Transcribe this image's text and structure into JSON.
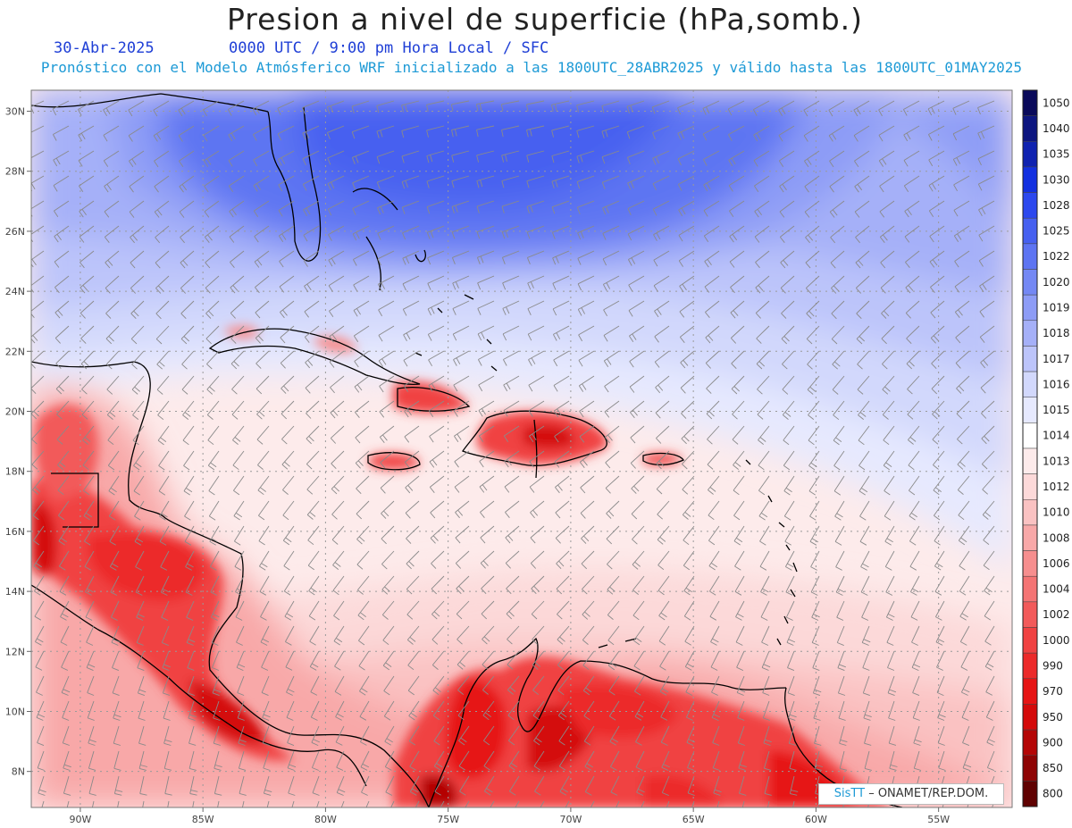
{
  "header": {
    "title": "Presion a nivel de superficie (hPa,somb.)",
    "date": "30-Abr-2025",
    "time_label": "0000 UTC / 9:00 pm Hora Local / SFC",
    "model_line": "Pronóstico con el Modelo Atmósferico WRF inicializado a las 1800UTC_28ABR2025 y válido hasta las  1800UTC_01MAY2025"
  },
  "map": {
    "lon_range": [
      -92,
      -52
    ],
    "lat_range": [
      6.8,
      30.7
    ],
    "lon_ticks": [
      {
        "value": -90,
        "label": "90W"
      },
      {
        "value": -85,
        "label": "85W"
      },
      {
        "value": -80,
        "label": "80W"
      },
      {
        "value": -75,
        "label": "75W"
      },
      {
        "value": -70,
        "label": "70W"
      },
      {
        "value": -65,
        "label": "65W"
      },
      {
        "value": -60,
        "label": "60W"
      },
      {
        "value": -55,
        "label": "55W"
      }
    ],
    "lat_ticks": [
      {
        "value": 30,
        "label": "30N"
      },
      {
        "value": 28,
        "label": "28N"
      },
      {
        "value": 26,
        "label": "26N"
      },
      {
        "value": 24,
        "label": "24N"
      },
      {
        "value": 22,
        "label": "22N"
      },
      {
        "value": 20,
        "label": "20N"
      },
      {
        "value": 18,
        "label": "18N"
      },
      {
        "value": 16,
        "label": "16N"
      },
      {
        "value": 14,
        "label": "14N"
      },
      {
        "value": 12,
        "label": "12N"
      },
      {
        "value": 10,
        "label": "10N"
      },
      {
        "value": 8,
        "label": "8N"
      }
    ],
    "grid": "dotted",
    "wind_barbs": true
  },
  "colorbar": {
    "levels": [
      {
        "label": "1050",
        "color": "#0a0a5a"
      },
      {
        "label": "1040",
        "color": "#0d1680"
      },
      {
        "label": "1035",
        "color": "#0f22b0"
      },
      {
        "label": "1030",
        "color": "#1230e0"
      },
      {
        "label": "1028",
        "color": "#2c48ee"
      },
      {
        "label": "1025",
        "color": "#4660f0"
      },
      {
        "label": "1022",
        "color": "#5d74f2"
      },
      {
        "label": "1020",
        "color": "#7488f4"
      },
      {
        "label": "1019",
        "color": "#8d9cf6"
      },
      {
        "label": "1018",
        "color": "#a5b0f8"
      },
      {
        "label": "1017",
        "color": "#bcc4fa"
      },
      {
        "label": "1016",
        "color": "#d2d8fc"
      },
      {
        "label": "1015",
        "color": "#e6e9fe"
      },
      {
        "label": "1014",
        "color": "#ffffff"
      },
      {
        "label": "1013",
        "color": "#fdebeb"
      },
      {
        "label": "1012",
        "color": "#fcd9d9"
      },
      {
        "label": "1010",
        "color": "#fac2c2"
      },
      {
        "label": "1008",
        "color": "#f8a8a8"
      },
      {
        "label": "1006",
        "color": "#f68e8e"
      },
      {
        "label": "1004",
        "color": "#f47474"
      },
      {
        "label": "1002",
        "color": "#f25a5a"
      },
      {
        "label": "1000",
        "color": "#f04242"
      },
      {
        "label": "990",
        "color": "#ec2a2a"
      },
      {
        "label": "970",
        "color": "#e61414"
      },
      {
        "label": "950",
        "color": "#d40a0a"
      },
      {
        "label": "900",
        "color": "#b40606"
      },
      {
        "label": "850",
        "color": "#8e0404"
      },
      {
        "label": "800",
        "color": "#600202"
      }
    ]
  },
  "credit": {
    "brand": "SisTT",
    "org": " – ONAMET/REP.DOM."
  }
}
